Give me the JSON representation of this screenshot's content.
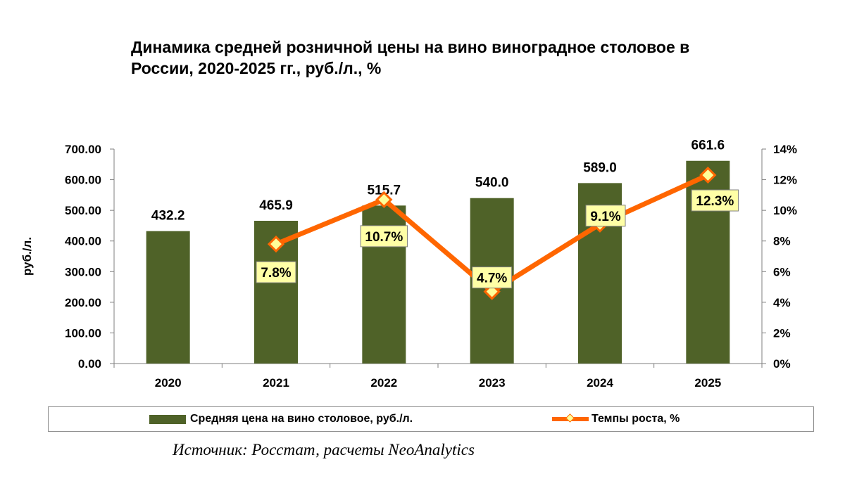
{
  "chart_data": {
    "type": "bar",
    "title": "Динамика средней розничной цены на вино виноградное столовое в\nРоссии, 2020-2025 гг., руб./л., %",
    "categories": [
      "2020",
      "2021",
      "2022",
      "2023",
      "2024",
      "2025"
    ],
    "series": [
      {
        "name": "Средняя цена на вино столовое, руб./л.",
        "type": "bar",
        "axis": "left",
        "values": [
          432.2,
          465.9,
          515.7,
          540.0,
          589.0,
          661.6
        ],
        "labels": [
          "432.2",
          "465.9",
          "515.7",
          "540.0",
          "589.0",
          "661.6"
        ]
      },
      {
        "name": "Темпы роста, %",
        "type": "line",
        "axis": "right",
        "values": [
          null,
          7.8,
          10.7,
          4.7,
          9.1,
          12.3
        ],
        "labels": [
          "",
          "7.8%",
          "10.7%",
          "4.7%",
          "9.1%",
          "12.3%"
        ]
      }
    ],
    "ylabel": "руб./л.",
    "ylim": [
      0,
      700
    ],
    "yticks": [
      "0.00",
      "100.00",
      "200.00",
      "300.00",
      "400.00",
      "500.00",
      "600.00",
      "700.00"
    ],
    "y2lim": [
      0,
      14
    ],
    "y2ticks": [
      "0%",
      "2%",
      "4%",
      "6%",
      "8%",
      "10%",
      "12%",
      "14%"
    ],
    "legend": "bottom",
    "colors": {
      "bar": "#4f6228",
      "line": "#ff6600",
      "marker_fill": "#ffff99",
      "label_bg": "#ffffa6"
    }
  },
  "source": "Источник: Росстат, расчеты NeoAnalytics"
}
